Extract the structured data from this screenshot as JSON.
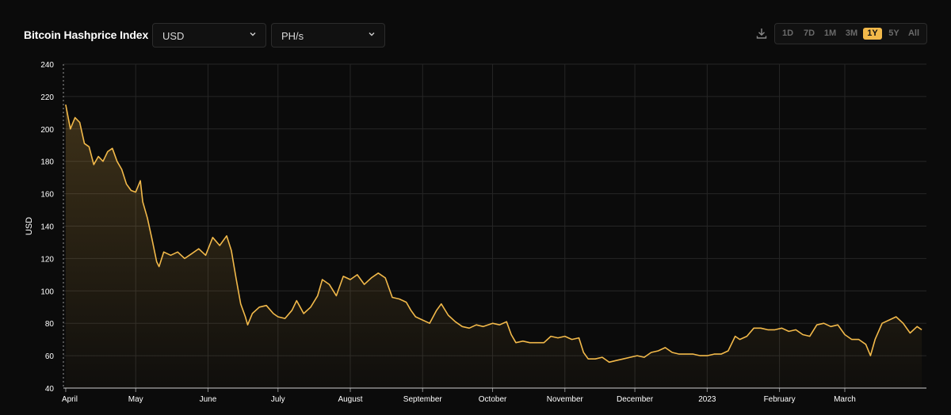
{
  "header": {
    "title": "Bitcoin Hashprice Index",
    "currency_select": "USD",
    "unit_select": "PH/s",
    "download_icon": "download-icon",
    "ranges": [
      "1D",
      "7D",
      "1M",
      "3M",
      "1Y",
      "5Y",
      "All"
    ],
    "active_range": "1Y"
  },
  "colors": {
    "line": "#f2b94a",
    "grid": "#262626",
    "background": "#0b0b0b"
  },
  "chart_data": {
    "type": "area",
    "title": "",
    "xlabel": "",
    "ylabel": "USD",
    "ylim": [
      40,
      240
    ],
    "yticks": [
      40,
      60,
      80,
      100,
      120,
      140,
      160,
      180,
      200,
      220,
      240
    ],
    "xlim": [
      "2022-03-31",
      "2023-04-05"
    ],
    "xticks": [
      {
        "date": "2022-04-01",
        "label": "April"
      },
      {
        "date": "2022-05-01",
        "label": "May"
      },
      {
        "date": "2022-06-01",
        "label": "June"
      },
      {
        "date": "2022-07-01",
        "label": "July"
      },
      {
        "date": "2022-08-01",
        "label": "August"
      },
      {
        "date": "2022-09-01",
        "label": "September"
      },
      {
        "date": "2022-10-01",
        "label": "October"
      },
      {
        "date": "2022-11-01",
        "label": "November"
      },
      {
        "date": "2022-12-01",
        "label": "December"
      },
      {
        "date": "2023-01-01",
        "label": "2023"
      },
      {
        "date": "2023-02-01",
        "label": "February"
      },
      {
        "date": "2023-03-01",
        "label": "March"
      }
    ],
    "grid": true,
    "series": [
      {
        "values": [
          [
            "2022-04-01",
            215
          ],
          [
            "2022-04-03",
            200
          ],
          [
            "2022-04-05",
            207
          ],
          [
            "2022-04-07",
            204
          ],
          [
            "2022-04-09",
            191
          ],
          [
            "2022-04-11",
            189
          ],
          [
            "2022-04-13",
            178
          ],
          [
            "2022-04-15",
            183
          ],
          [
            "2022-04-17",
            180
          ],
          [
            "2022-04-19",
            186
          ],
          [
            "2022-04-21",
            188
          ],
          [
            "2022-04-23",
            180
          ],
          [
            "2022-04-25",
            175
          ],
          [
            "2022-04-27",
            166
          ],
          [
            "2022-04-29",
            162
          ],
          [
            "2022-05-01",
            161
          ],
          [
            "2022-05-03",
            168
          ],
          [
            "2022-05-04",
            155
          ],
          [
            "2022-05-06",
            145
          ],
          [
            "2022-05-08",
            132
          ],
          [
            "2022-05-10",
            118
          ],
          [
            "2022-05-11",
            115
          ],
          [
            "2022-05-13",
            124
          ],
          [
            "2022-05-16",
            122
          ],
          [
            "2022-05-19",
            124
          ],
          [
            "2022-05-22",
            120
          ],
          [
            "2022-05-25",
            123
          ],
          [
            "2022-05-28",
            126
          ],
          [
            "2022-05-31",
            122
          ],
          [
            "2022-06-03",
            133
          ],
          [
            "2022-06-06",
            128
          ],
          [
            "2022-06-09",
            134
          ],
          [
            "2022-06-11",
            125
          ],
          [
            "2022-06-13",
            108
          ],
          [
            "2022-06-15",
            92
          ],
          [
            "2022-06-17",
            84
          ],
          [
            "2022-06-18",
            79
          ],
          [
            "2022-06-20",
            86
          ],
          [
            "2022-06-23",
            90
          ],
          [
            "2022-06-26",
            91
          ],
          [
            "2022-06-29",
            86
          ],
          [
            "2022-07-01",
            84
          ],
          [
            "2022-07-04",
            83
          ],
          [
            "2022-07-07",
            88
          ],
          [
            "2022-07-09",
            94
          ],
          [
            "2022-07-12",
            86
          ],
          [
            "2022-07-15",
            90
          ],
          [
            "2022-07-18",
            97
          ],
          [
            "2022-07-20",
            107
          ],
          [
            "2022-07-23",
            104
          ],
          [
            "2022-07-26",
            97
          ],
          [
            "2022-07-29",
            109
          ],
          [
            "2022-08-01",
            107
          ],
          [
            "2022-08-04",
            110
          ],
          [
            "2022-08-07",
            104
          ],
          [
            "2022-08-10",
            108
          ],
          [
            "2022-08-13",
            111
          ],
          [
            "2022-08-16",
            108
          ],
          [
            "2022-08-19",
            96
          ],
          [
            "2022-08-22",
            95
          ],
          [
            "2022-08-25",
            93
          ],
          [
            "2022-08-27",
            88
          ],
          [
            "2022-08-29",
            84
          ],
          [
            "2022-09-01",
            82
          ],
          [
            "2022-09-04",
            80
          ],
          [
            "2022-09-07",
            88
          ],
          [
            "2022-09-09",
            92
          ],
          [
            "2022-09-12",
            85
          ],
          [
            "2022-09-15",
            81
          ],
          [
            "2022-09-18",
            78
          ],
          [
            "2022-09-21",
            77
          ],
          [
            "2022-09-24",
            79
          ],
          [
            "2022-09-27",
            78
          ],
          [
            "2022-10-01",
            80
          ],
          [
            "2022-10-04",
            79
          ],
          [
            "2022-10-07",
            81
          ],
          [
            "2022-10-09",
            73
          ],
          [
            "2022-10-11",
            68
          ],
          [
            "2022-10-14",
            69
          ],
          [
            "2022-10-17",
            68
          ],
          [
            "2022-10-20",
            68
          ],
          [
            "2022-10-23",
            68
          ],
          [
            "2022-10-26",
            72
          ],
          [
            "2022-10-29",
            71
          ],
          [
            "2022-11-01",
            72
          ],
          [
            "2022-11-04",
            70
          ],
          [
            "2022-11-07",
            71
          ],
          [
            "2022-11-09",
            62
          ],
          [
            "2022-11-11",
            58
          ],
          [
            "2022-11-14",
            58
          ],
          [
            "2022-11-17",
            59
          ],
          [
            "2022-11-20",
            56
          ],
          [
            "2022-11-23",
            57
          ],
          [
            "2022-11-26",
            58
          ],
          [
            "2022-11-29",
            59
          ],
          [
            "2022-12-02",
            60
          ],
          [
            "2022-12-05",
            59
          ],
          [
            "2022-12-08",
            62
          ],
          [
            "2022-12-11",
            63
          ],
          [
            "2022-12-14",
            65
          ],
          [
            "2022-12-17",
            62
          ],
          [
            "2022-12-20",
            61
          ],
          [
            "2022-12-23",
            61
          ],
          [
            "2022-12-26",
            61
          ],
          [
            "2022-12-29",
            60
          ],
          [
            "2023-01-01",
            60
          ],
          [
            "2023-01-04",
            61
          ],
          [
            "2023-01-07",
            61
          ],
          [
            "2023-01-10",
            63
          ],
          [
            "2023-01-13",
            72
          ],
          [
            "2023-01-15",
            70
          ],
          [
            "2023-01-18",
            72
          ],
          [
            "2023-01-21",
            77
          ],
          [
            "2023-01-24",
            77
          ],
          [
            "2023-01-27",
            76
          ],
          [
            "2023-01-30",
            76
          ],
          [
            "2023-02-02",
            77
          ],
          [
            "2023-02-05",
            75
          ],
          [
            "2023-02-08",
            76
          ],
          [
            "2023-02-11",
            73
          ],
          [
            "2023-02-14",
            72
          ],
          [
            "2023-02-17",
            79
          ],
          [
            "2023-02-20",
            80
          ],
          [
            "2023-02-23",
            78
          ],
          [
            "2023-02-26",
            79
          ],
          [
            "2023-03-01",
            73
          ],
          [
            "2023-03-04",
            70
          ],
          [
            "2023-03-07",
            70
          ],
          [
            "2023-03-10",
            67
          ],
          [
            "2023-03-12",
            60
          ],
          [
            "2023-03-14",
            70
          ],
          [
            "2023-03-17",
            80
          ],
          [
            "2023-03-20",
            82
          ],
          [
            "2023-03-23",
            84
          ],
          [
            "2023-03-26",
            80
          ],
          [
            "2023-03-29",
            74
          ],
          [
            "2023-04-01",
            78
          ],
          [
            "2023-04-03",
            76
          ]
        ]
      }
    ]
  }
}
